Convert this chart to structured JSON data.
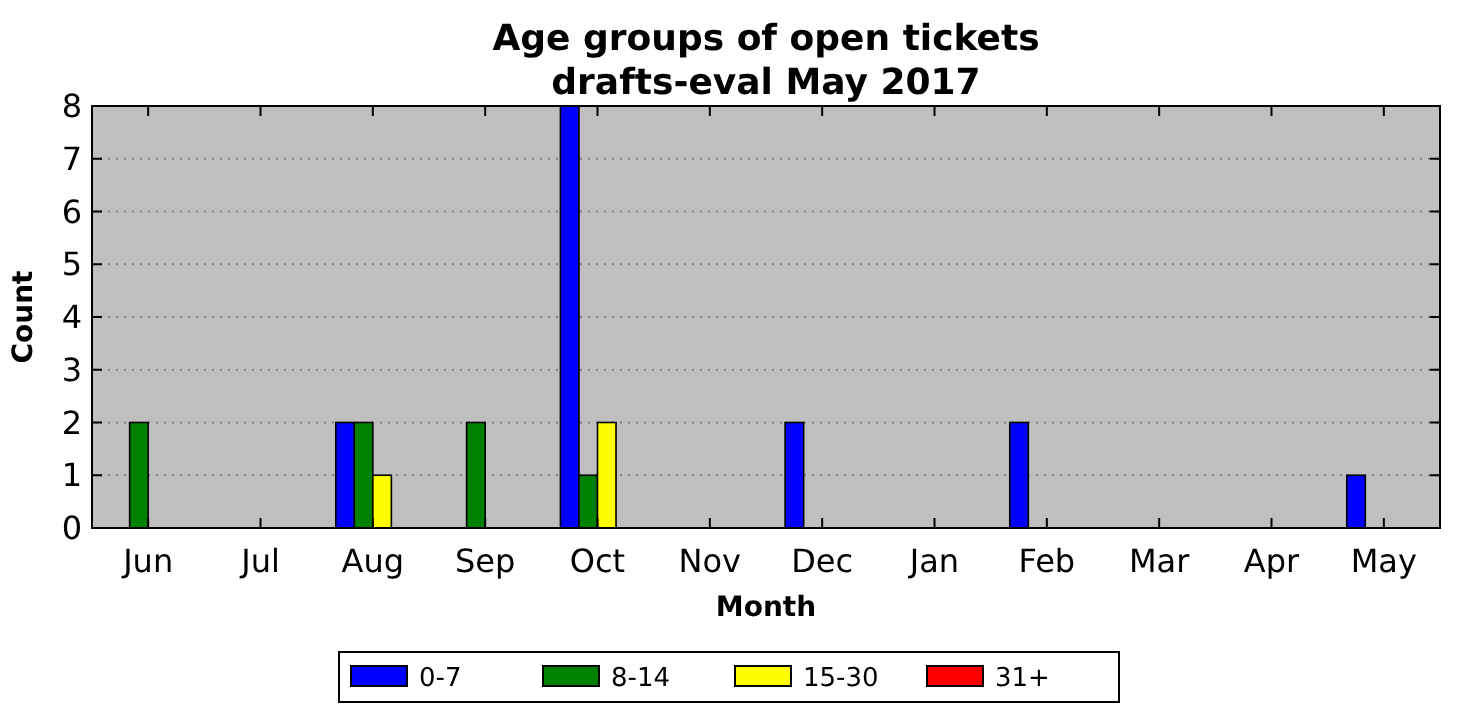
{
  "chart_data": {
    "type": "bar",
    "title": "Age groups of open tickets\ndrafts-eval May 2017",
    "xlabel": "Month",
    "ylabel": "Count",
    "categories": [
      "Jun",
      "Jul",
      "Aug",
      "Sep",
      "Oct",
      "Nov",
      "Dec",
      "Jan",
      "Feb",
      "Mar",
      "Apr",
      "May"
    ],
    "series": [
      {
        "name": "0-7",
        "color": "#0000ff",
        "values": [
          0,
          0,
          2,
          0,
          8,
          0,
          2,
          0,
          2,
          0,
          0,
          1
        ]
      },
      {
        "name": "8-14",
        "color": "#008000",
        "values": [
          2,
          0,
          2,
          2,
          1,
          0,
          0,
          0,
          0,
          0,
          0,
          0
        ]
      },
      {
        "name": "15-30",
        "color": "#ffff00",
        "values": [
          0,
          0,
          1,
          0,
          2,
          0,
          0,
          0,
          0,
          0,
          0,
          0
        ]
      },
      {
        "name": "31+",
        "color": "#ff0000",
        "values": [
          0,
          0,
          0,
          0,
          0,
          0,
          0,
          0,
          0,
          0,
          0,
          0
        ]
      }
    ],
    "ylim": [
      0,
      8
    ],
    "yticks": [
      0,
      1,
      2,
      3,
      4,
      5,
      6,
      7,
      8
    ],
    "grid": "y",
    "legend": "bottom"
  }
}
